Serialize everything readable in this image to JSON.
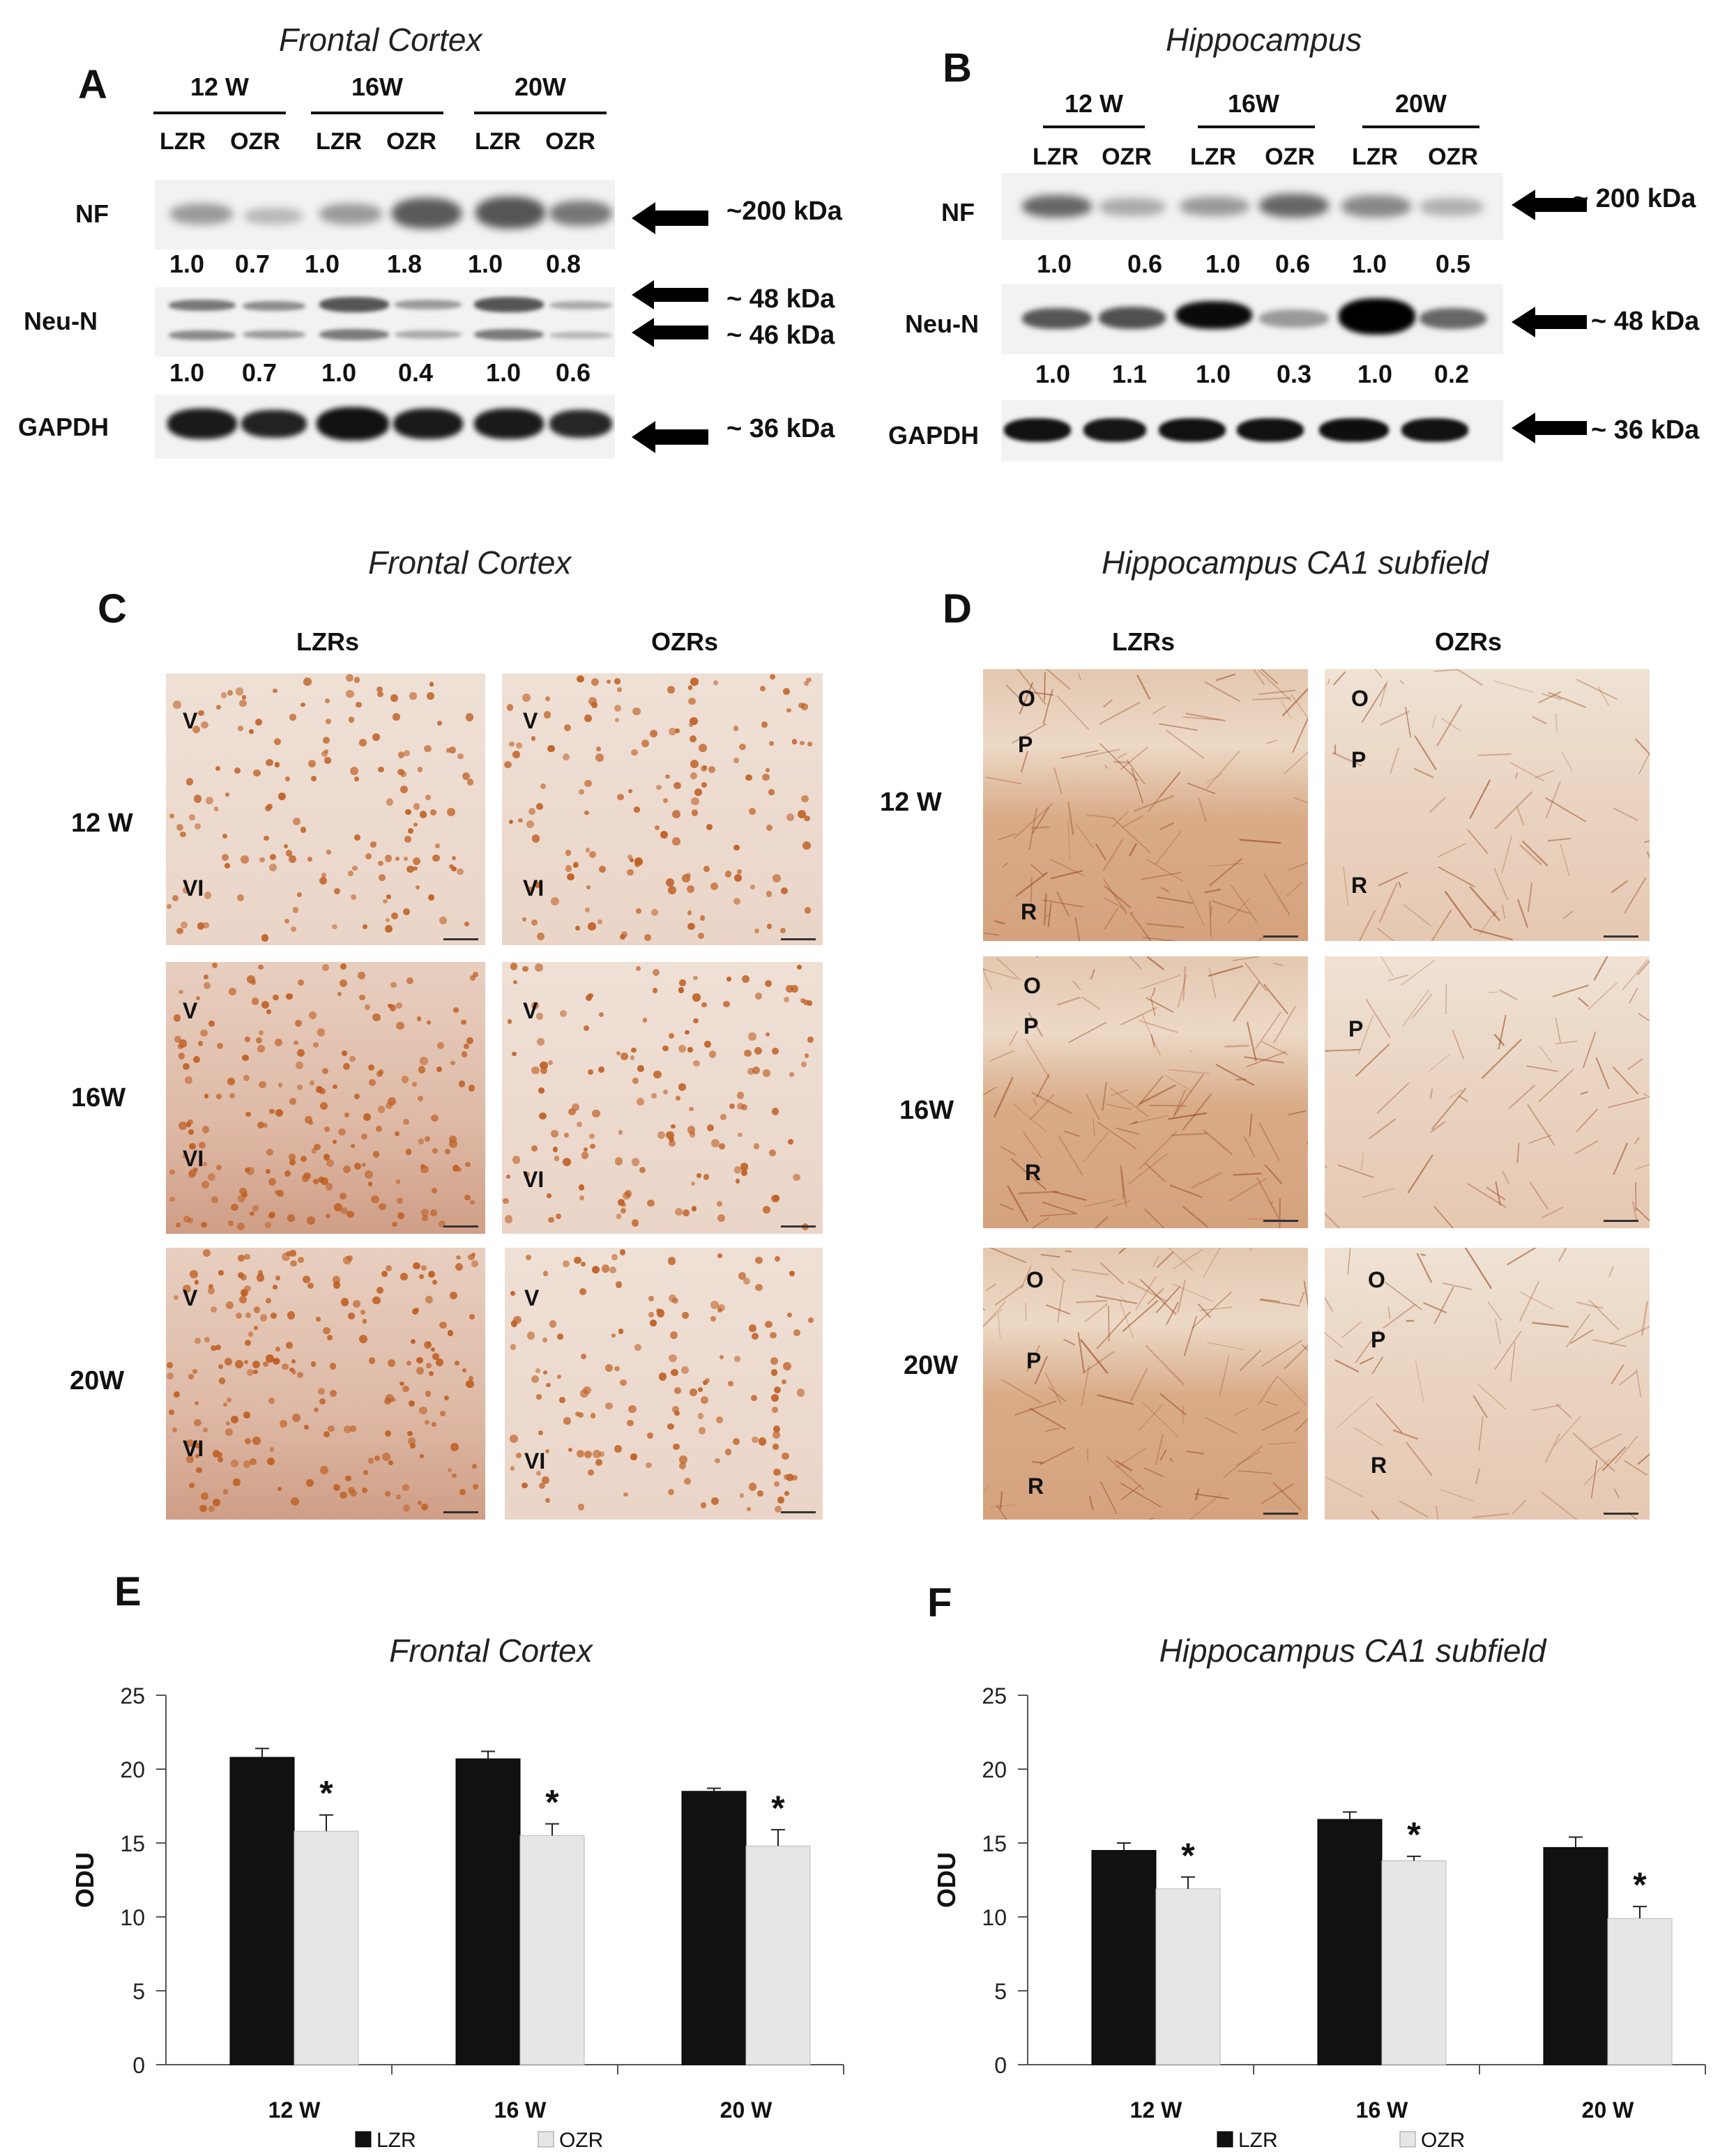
{
  "panelA": {
    "letter": "A",
    "title": "Frontal Cortex",
    "weeks": [
      "12 W",
      "16W",
      "20W"
    ],
    "lanes": [
      "LZR",
      "OZR",
      "LZR",
      "OZR",
      "LZR",
      "OZR"
    ],
    "rows": [
      {
        "label": "NF",
        "ratios": [
          "1.0",
          "0.7",
          "1.0",
          "1.8",
          "1.0",
          "0.8"
        ]
      },
      {
        "label": "Neu-N",
        "ratios": [
          "1.0",
          "0.7",
          "1.0",
          "0.4",
          "1.0",
          "0.6"
        ]
      },
      {
        "label": "GAPDH",
        "ratios": []
      }
    ],
    "markers": [
      "~200 kDa",
      "~ 48 kDa",
      "~ 46 kDa",
      "~ 36 kDa"
    ]
  },
  "panelB": {
    "letter": "B",
    "title": "Hippocampus",
    "weeks": [
      "12 W",
      "16W",
      "20W"
    ],
    "lanes": [
      "LZR",
      "OZR",
      "LZR",
      "OZR",
      "LZR",
      "OZR"
    ],
    "rows": [
      {
        "label": "NF",
        "ratios": [
          "1.0",
          "0.6",
          "1.0",
          "0.6",
          "1.0",
          "0.5"
        ]
      },
      {
        "label": "Neu-N",
        "ratios": [
          "1.0",
          "1.1",
          "1.0",
          "0.3",
          "1.0",
          "0.2"
        ]
      },
      {
        "label": "GAPDH",
        "ratios": []
      }
    ],
    "markers": [
      "~ 200 kDa",
      "~ 48 kDa",
      "~ 36 kDa"
    ]
  },
  "panelC": {
    "letter": "C",
    "title": "Frontal Cortex",
    "columns": [
      "LZRs",
      "OZRs"
    ],
    "rows": [
      "12 W",
      "16W",
      "20W"
    ],
    "layers": {
      "upper": "V",
      "lower": "VI"
    }
  },
  "panelD": {
    "letter": "D",
    "title": "Hippocampus CA1 subfield",
    "columns": [
      "LZRs",
      "OZRs"
    ],
    "rows": [
      "12 W",
      "16W",
      "20W"
    ],
    "layers": {
      "o": "O",
      "p": "P",
      "r": "R"
    }
  },
  "chart_data": [
    {
      "panel": "E",
      "type": "bar",
      "title": "Frontal Cortex",
      "ylabel": "ODU",
      "xlabel": "",
      "ylim": [
        0,
        25
      ],
      "yticks": [
        0,
        5,
        10,
        15,
        20,
        25
      ],
      "categories": [
        "12 W",
        "16 W",
        "20 W"
      ],
      "series": [
        {
          "name": "LZR",
          "color": "#111111",
          "values": [
            20.8,
            20.7,
            18.5
          ],
          "errors": [
            0.6,
            0.5,
            0.2
          ]
        },
        {
          "name": "OZR",
          "color": "#e6e6e6",
          "values": [
            15.8,
            15.5,
            14.8
          ],
          "errors": [
            1.1,
            0.8,
            1.1
          ],
          "annotation": "*"
        }
      ],
      "legend": "bottom"
    },
    {
      "panel": "F",
      "type": "bar",
      "title": "Hippocampus CA1 subfield",
      "ylabel": "ODU",
      "xlabel": "",
      "ylim": [
        0,
        25
      ],
      "yticks": [
        0,
        5,
        10,
        15,
        20,
        25
      ],
      "categories": [
        "12 W",
        "16 W",
        "20 W"
      ],
      "series": [
        {
          "name": "LZR",
          "color": "#111111",
          "values": [
            14.5,
            16.6,
            14.7
          ],
          "errors": [
            0.5,
            0.5,
            0.7
          ]
        },
        {
          "name": "OZR",
          "color": "#e6e6e6",
          "values": [
            11.9,
            13.8,
            9.9
          ],
          "errors": [
            0.8,
            0.3,
            0.8
          ],
          "annotation": "*"
        }
      ],
      "legend": "bottom"
    }
  ]
}
